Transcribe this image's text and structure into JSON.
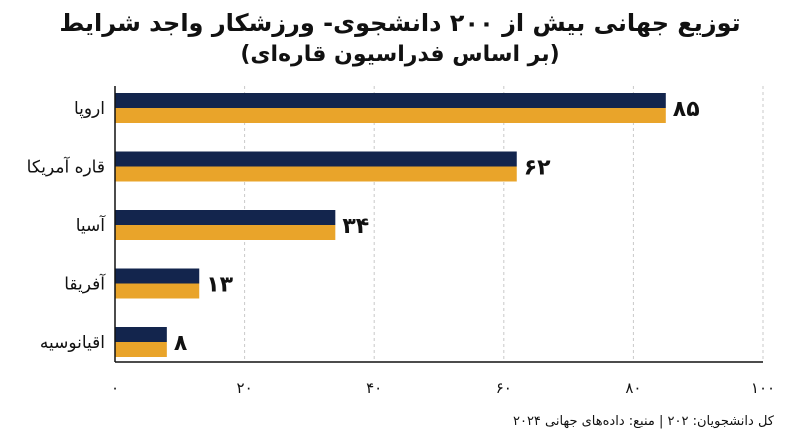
{
  "chart_data": {
    "type": "bar",
    "orientation": "horizontal",
    "title": "توزیع جهانی بیش از ۲۰۰ دانشجوی- ورزشکار واجد شرایط",
    "subtitle": "(بر اساس فدراسیون قاره‌ای)",
    "categories": [
      "اروپا",
      "قاره آمریکا",
      "آسیا",
      "آفریقا",
      "اقیانوسیه"
    ],
    "values": [
      85,
      62,
      34,
      13,
      8
    ],
    "value_labels": [
      "۸۵",
      "۶۲",
      "۳۴",
      "۱۳",
      "۸"
    ],
    "xlim": [
      0,
      100
    ],
    "x_ticks": [
      0,
      20,
      40,
      60,
      80,
      100
    ],
    "x_tick_labels": [
      "۰",
      "۲۰",
      "۴۰",
      "۶۰",
      "۸۰",
      "۱۰۰"
    ],
    "grid": "vertical dashed",
    "bar_colors": {
      "top": "#13254d",
      "bottom": "#e9a42a"
    }
  },
  "footer": "کل دانشجویان: ۲۰۲ | منبع: داده‌های جهانی ۲۰۲۴"
}
